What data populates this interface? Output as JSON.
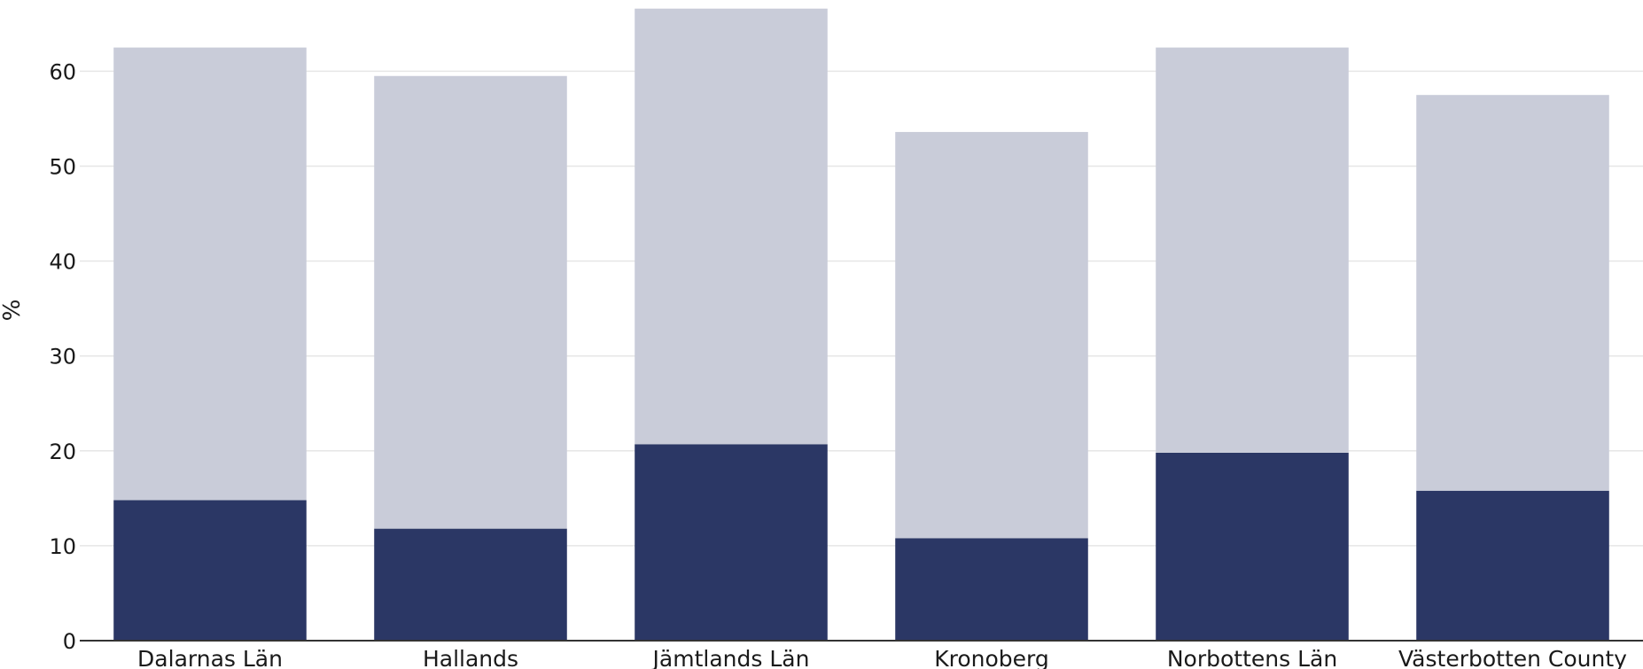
{
  "chart_data": {
    "type": "bar",
    "stacked": true,
    "categories": [
      "Dalarnas Län",
      "Hallands",
      "Jämtlands Län",
      "Kronoberg",
      "Norbottens Län",
      "Västerbotten County"
    ],
    "series": [
      {
        "values": [
          14.8,
          11.8,
          20.7,
          10.8,
          19.8,
          15.8
        ],
        "color": "#2b3765"
      },
      {
        "values": [
          47.7,
          47.7,
          45.9,
          42.8,
          42.7,
          41.7
        ],
        "color": "#c9ccd9"
      }
    ],
    "title": "",
    "xlabel": "",
    "ylabel": "%",
    "ylim": [
      0,
      66.5
    ],
    "yticks": [
      0,
      10,
      20,
      30,
      40,
      50,
      60
    ],
    "grid": true,
    "legend": "none"
  }
}
